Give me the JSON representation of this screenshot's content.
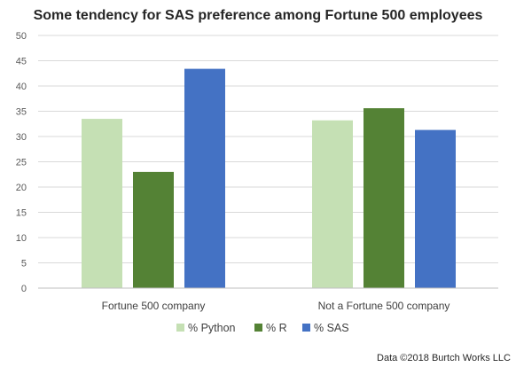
{
  "chart_data": {
    "type": "bar",
    "title": "Some tendency for SAS preference among Fortune 500 employees",
    "xlabel": "",
    "ylabel": "",
    "ylim": [
      0,
      50
    ],
    "yticks": [
      0,
      5,
      10,
      15,
      20,
      25,
      30,
      35,
      40,
      45,
      50
    ],
    "grid": true,
    "legend_position": "bottom",
    "categories": [
      "Fortune 500 company",
      "Not a Fortune 500 company"
    ],
    "series": [
      {
        "name": "% Python",
        "values": [
          33.5,
          33.2
        ],
        "color": "#c5e0b4"
      },
      {
        "name": "% R",
        "values": [
          23.0,
          35.6
        ],
        "color": "#548235"
      },
      {
        "name": "% SAS",
        "values": [
          43.4,
          31.3
        ],
        "color": "#4472c4"
      }
    ]
  },
  "footer": {
    "credit": "Data ©2018 Burtch Works LLC"
  }
}
